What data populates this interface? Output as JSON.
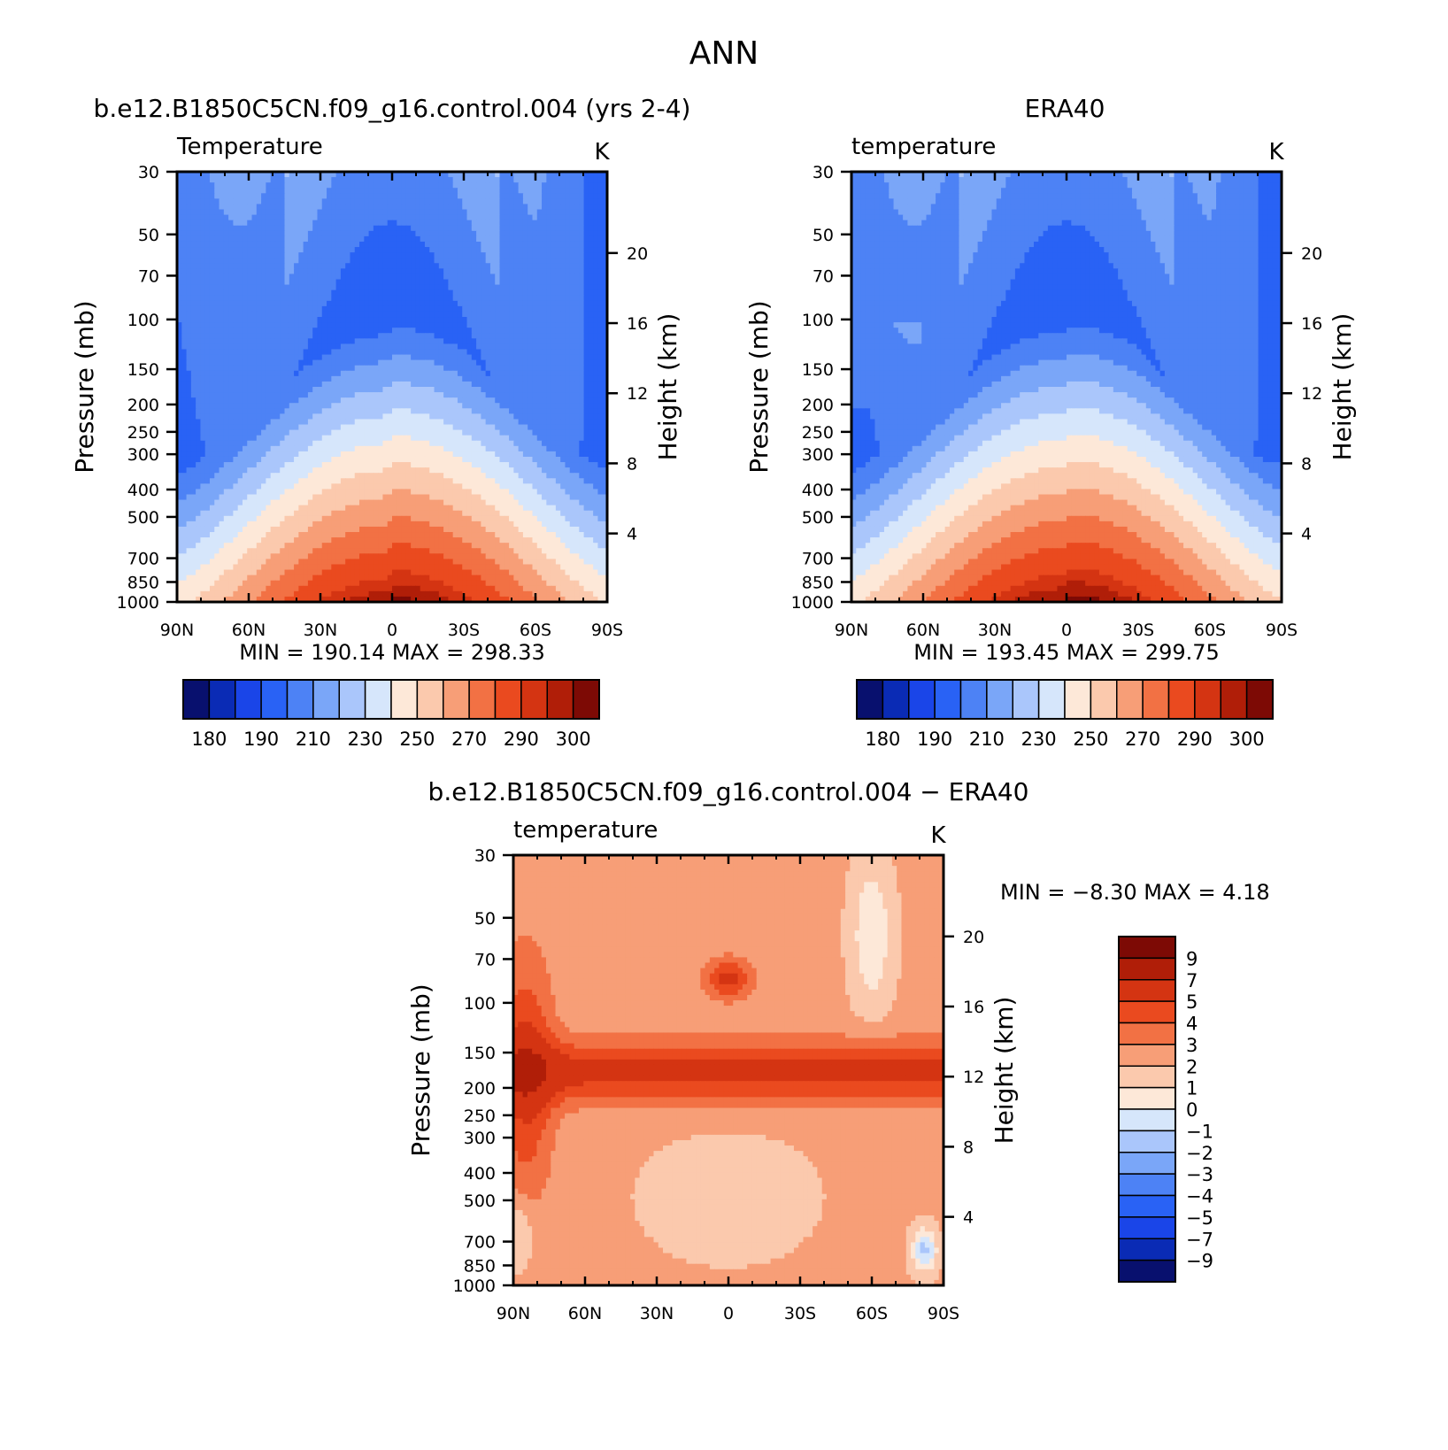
{
  "page_title": "ANN",
  "chart_data": [
    {
      "type": "heatmap",
      "panel_title": "b.e12.B1850C5CN.f09_g16.control.004 (yrs 2-4)",
      "variable_label": "Temperature",
      "units": "K",
      "ylabel": "Pressure (mb)",
      "ylabel_right": "Height (km)",
      "min_max_text": "MIN = 190.14   MAX = 298.33",
      "x_ticks": [
        "90N",
        "60N",
        "30N",
        "0",
        "30S",
        "60S",
        "90S"
      ],
      "y_ticks": [
        "30",
        "50",
        "70",
        "100",
        "150",
        "200",
        "250",
        "300",
        "400",
        "500",
        "700",
        "850",
        "1000"
      ],
      "y_ticks_right": [
        "20",
        "16",
        "12",
        "8",
        "4"
      ],
      "colorbar_labels": [
        "180",
        "190",
        "210",
        "230",
        "250",
        "270",
        "290",
        "300"
      ],
      "colormap": [
        "#08106e",
        "#0a2bb5",
        "#1a45e8",
        "#2962f5",
        "#4d82f5",
        "#7aa6f8",
        "#aac6fb",
        "#d6e6fb",
        "#fde8d8",
        "#fbc9ad",
        "#f79e77",
        "#f27144",
        "#ea4a1f",
        "#d43412",
        "#b01e08",
        "#7d0a05"
      ]
    },
    {
      "type": "heatmap",
      "panel_title": "ERA40",
      "variable_label": "temperature",
      "units": "K",
      "ylabel": "Pressure (mb)",
      "ylabel_right": "Height (km)",
      "min_max_text": "MIN = 193.45   MAX = 299.75",
      "x_ticks": [
        "90N",
        "60N",
        "30N",
        "0",
        "30S",
        "60S",
        "90S"
      ],
      "y_ticks": [
        "30",
        "50",
        "70",
        "100",
        "150",
        "200",
        "250",
        "300",
        "400",
        "500",
        "700",
        "850",
        "1000"
      ],
      "y_ticks_right": [
        "20",
        "16",
        "12",
        "8",
        "4"
      ],
      "colorbar_labels": [
        "180",
        "190",
        "210",
        "230",
        "250",
        "270",
        "290",
        "300"
      ],
      "colormap": [
        "#08106e",
        "#0a2bb5",
        "#1a45e8",
        "#2962f5",
        "#4d82f5",
        "#7aa6f8",
        "#aac6fb",
        "#d6e6fb",
        "#fde8d8",
        "#fbc9ad",
        "#f79e77",
        "#f27144",
        "#ea4a1f",
        "#d43412",
        "#b01e08",
        "#7d0a05"
      ]
    },
    {
      "type": "heatmap",
      "panel_title": "b.e12.B1850C5CN.f09_g16.control.004 − ERA40",
      "variable_label": "temperature",
      "units": "K",
      "ylabel": "Pressure (mb)",
      "ylabel_right": "Height (km)",
      "min_max_text": "MIN =   −8.30   MAX =    4.18",
      "x_ticks": [
        "90N",
        "60N",
        "30N",
        "0",
        "30S",
        "60S",
        "90S"
      ],
      "y_ticks": [
        "30",
        "50",
        "70",
        "100",
        "150",
        "200",
        "250",
        "300",
        "400",
        "500",
        "700",
        "850",
        "1000"
      ],
      "y_ticks_right": [
        "20",
        "16",
        "12",
        "8",
        "4"
      ],
      "colorbar_labels": [
        "9",
        "7",
        "5",
        "4",
        "3",
        "2",
        "1",
        "0",
        "−1",
        "−2",
        "−3",
        "−4",
        "−5",
        "−7",
        "−9"
      ],
      "colormap": [
        "#7d0a05",
        "#b01e08",
        "#d43412",
        "#ea4a1f",
        "#f27144",
        "#f79e77",
        "#fbc9ad",
        "#fde8d8",
        "#d6e6fb",
        "#aac6fb",
        "#7aa6f8",
        "#4d82f5",
        "#2962f5",
        "#1a45e8",
        "#0a2bb5",
        "#08106e"
      ]
    }
  ]
}
